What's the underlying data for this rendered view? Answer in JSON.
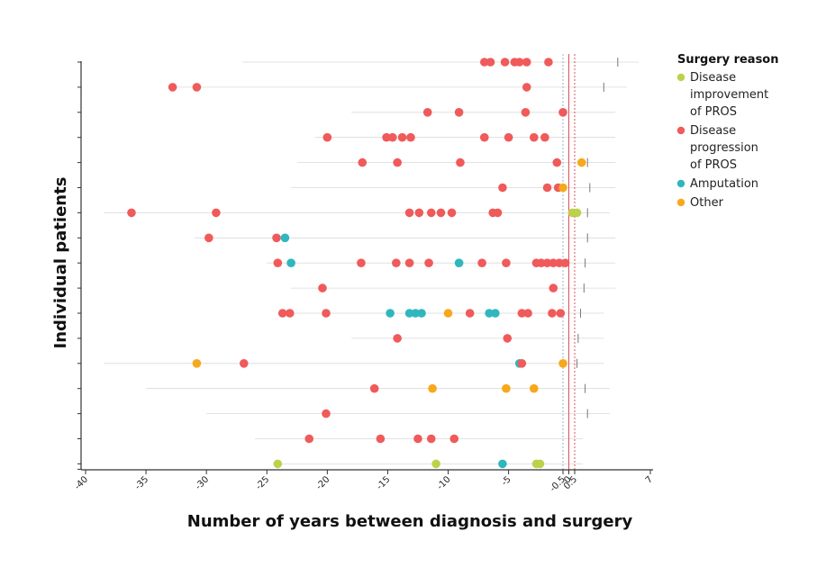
{
  "chart_data": {
    "type": "scatter",
    "xlabel": "Number of years between diagnosis and surgery",
    "ylabel": "Individual patients",
    "xlim": [
      -40,
      7
    ],
    "xticks": [
      -40,
      -35,
      -30,
      -25,
      -20,
      -15,
      -10,
      -5,
      -0.5,
      0,
      0.5,
      7
    ],
    "xtick_labels": [
      "-40",
      "-35",
      "-30",
      "-25",
      "-20",
      "-15",
      "-10",
      "-5",
      "-0.5",
      "0",
      "0.5",
      "7"
    ],
    "reference_lines": [
      {
        "x": -0.5,
        "color": "#9bb0c8",
        "style": "dashed"
      },
      {
        "x": 0,
        "color": "#e0505a",
        "style": "solid"
      },
      {
        "x": 0.5,
        "color": "#e0505a",
        "style": "dashed"
      }
    ],
    "legend": {
      "title": "Surgery reason",
      "position": "top-right",
      "entries": [
        {
          "key": "improvement",
          "lines": [
            "Disease",
            "improvement",
            "of PROS"
          ],
          "color": "#bcd24a"
        },
        {
          "key": "progression",
          "lines": [
            "Disease",
            "progression",
            "of PROS"
          ],
          "color": "#f05a5a"
        },
        {
          "key": "amputation",
          "lines": [
            "Amputation"
          ],
          "color": "#2fb7bd"
        },
        {
          "key": "other",
          "lines": [
            "Other"
          ],
          "color": "#f7a81b"
        }
      ]
    },
    "patients": [
      {
        "span": [
          -27,
          6
        ],
        "end": 4.2,
        "points": [
          [
            -7,
            "progression"
          ],
          [
            -6.5,
            "progression"
          ],
          [
            -5.3,
            "progression"
          ],
          [
            -4.5,
            "progression"
          ],
          [
            -4.1,
            "progression"
          ],
          [
            -3.5,
            "progression"
          ],
          [
            -1.7,
            "progression"
          ]
        ]
      },
      {
        "span": [
          -33,
          5
        ],
        "end": 3.0,
        "points": [
          [
            -32.8,
            "progression"
          ],
          [
            -30.8,
            "progression"
          ],
          [
            -3.5,
            "progression"
          ]
        ]
      },
      {
        "span": [
          -18,
          4
        ],
        "end": null,
        "points": [
          [
            -11.7,
            "progression"
          ],
          [
            -9.1,
            "progression"
          ],
          [
            -3.6,
            "progression"
          ],
          [
            -0.5,
            "progression"
          ]
        ]
      },
      {
        "span": [
          -21,
          4
        ],
        "end": null,
        "points": [
          [
            -20,
            "progression"
          ],
          [
            -15.1,
            "progression"
          ],
          [
            -14.6,
            "progression"
          ],
          [
            -13.8,
            "progression"
          ],
          [
            -13.1,
            "progression"
          ],
          [
            -7,
            "progression"
          ],
          [
            -5,
            "progression"
          ],
          [
            -2.9,
            "progression"
          ],
          [
            -2,
            "progression"
          ]
        ]
      },
      {
        "span": [
          -22.5,
          4
        ],
        "end": 1.6,
        "points": [
          [
            -17.1,
            "progression"
          ],
          [
            -14.2,
            "progression"
          ],
          [
            -9,
            "progression"
          ],
          [
            -1,
            "progression"
          ],
          [
            1.1,
            "other"
          ]
        ]
      },
      {
        "span": [
          -23,
          4
        ],
        "end": 1.8,
        "points": [
          [
            -5.5,
            "progression"
          ],
          [
            -1.8,
            "progression"
          ],
          [
            -0.9,
            "progression"
          ],
          [
            -0.5,
            "other"
          ]
        ]
      },
      {
        "span": [
          -38.5,
          3.5
        ],
        "end": 1.6,
        "points": [
          [
            -36.2,
            "progression"
          ],
          [
            -29.2,
            "progression"
          ],
          [
            -13.2,
            "progression"
          ],
          [
            -12.4,
            "progression"
          ],
          [
            -11.4,
            "progression"
          ],
          [
            -10.6,
            "progression"
          ],
          [
            -9.7,
            "progression"
          ],
          [
            -6.3,
            "progression"
          ],
          [
            -5.9,
            "progression"
          ],
          [
            0.3,
            "improvement"
          ],
          [
            0.7,
            "improvement"
          ]
        ]
      },
      {
        "span": [
          -31,
          4
        ],
        "end": 1.6,
        "points": [
          [
            -29.8,
            "progression"
          ],
          [
            -24.2,
            "progression"
          ],
          [
            -23.5,
            "amputation"
          ]
        ]
      },
      {
        "span": [
          -25,
          4
        ],
        "end": 1.4,
        "points": [
          [
            -24.1,
            "progression"
          ],
          [
            -23,
            "amputation"
          ],
          [
            -17.2,
            "progression"
          ],
          [
            -14.3,
            "progression"
          ],
          [
            -13.2,
            "progression"
          ],
          [
            -11.6,
            "progression"
          ],
          [
            -9.1,
            "amputation"
          ],
          [
            -7.2,
            "progression"
          ],
          [
            -5.2,
            "progression"
          ],
          [
            -2.7,
            "progression"
          ],
          [
            -2.3,
            "progression"
          ],
          [
            -1.8,
            "progression"
          ],
          [
            -1.3,
            "progression"
          ],
          [
            -0.8,
            "progression"
          ],
          [
            -0.3,
            "progression"
          ]
        ]
      },
      {
        "span": [
          -23,
          4
        ],
        "end": 1.3,
        "points": [
          [
            -20.4,
            "progression"
          ],
          [
            -1.3,
            "progression"
          ]
        ]
      },
      {
        "span": [
          -23.5,
          3
        ],
        "end": 1.0,
        "points": [
          [
            -23.7,
            "progression"
          ],
          [
            -23.1,
            "progression"
          ],
          [
            -20.1,
            "progression"
          ],
          [
            -14.8,
            "amputation"
          ],
          [
            -13.2,
            "amputation"
          ],
          [
            -12.7,
            "amputation"
          ],
          [
            -12.2,
            "amputation"
          ],
          [
            -10,
            "other"
          ],
          [
            -8.2,
            "progression"
          ],
          [
            -6.6,
            "amputation"
          ],
          [
            -6.1,
            "amputation"
          ],
          [
            -3.9,
            "progression"
          ],
          [
            -3.4,
            "progression"
          ],
          [
            -1.4,
            "progression"
          ],
          [
            -0.7,
            "progression"
          ]
        ]
      },
      {
        "span": [
          -18,
          3
        ],
        "end": 0.8,
        "points": [
          [
            -14.2,
            "progression"
          ],
          [
            -5.1,
            "progression"
          ]
        ]
      },
      {
        "span": [
          -38.5,
          3
        ],
        "end": 0.7,
        "points": [
          [
            -30.8,
            "other"
          ],
          [
            -26.9,
            "progression"
          ],
          [
            -4.1,
            "amputation"
          ],
          [
            -3.9,
            "progression"
          ],
          [
            -0.5,
            "other"
          ]
        ]
      },
      {
        "span": [
          -35,
          3.5
        ],
        "end": 1.4,
        "points": [
          [
            -16.1,
            "progression"
          ],
          [
            -11.3,
            "other"
          ],
          [
            -5.2,
            "other"
          ],
          [
            -2.9,
            "other"
          ]
        ]
      },
      {
        "span": [
          -30,
          3.5
        ],
        "end": 1.6,
        "points": [
          [
            -20.1,
            "progression"
          ]
        ]
      },
      {
        "span": [
          -26,
          1.2
        ],
        "end": null,
        "points": [
          [
            -21.5,
            "progression"
          ],
          [
            -15.6,
            "progression"
          ],
          [
            -12.5,
            "progression"
          ],
          [
            -11.4,
            "progression"
          ],
          [
            -9.5,
            "progression"
          ]
        ]
      },
      {
        "span": [
          -24.5,
          1.2
        ],
        "end": null,
        "points": [
          [
            -24.1,
            "improvement"
          ],
          [
            -11,
            "improvement"
          ],
          [
            -5.5,
            "amputation"
          ],
          [
            -2.7,
            "improvement"
          ],
          [
            -2.4,
            "improvement"
          ]
        ]
      }
    ]
  }
}
